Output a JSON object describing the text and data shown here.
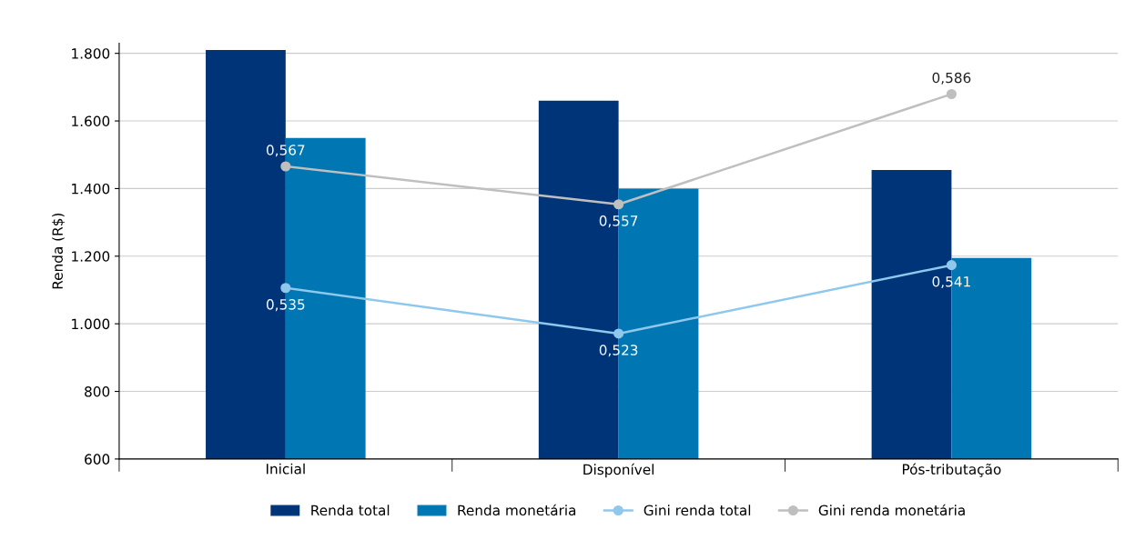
{
  "chart_data": {
    "type": "bar",
    "ylabel": "Renda (R$)",
    "categories": [
      "Inicial",
      "Disponível",
      "Pós-tributação"
    ],
    "series": [
      {
        "name": "Renda total",
        "color": "#003478",
        "values": [
          1810,
          1660,
          1455
        ]
      },
      {
        "name": "Renda monetária",
        "color": "#0077b3",
        "values": [
          1550,
          1400,
          1195
        ]
      },
      {
        "name": "Gini renda total",
        "type": "line",
        "axis": "y2",
        "color": "#8ec8ec",
        "marker": "circle",
        "values": [
          0.535,
          0.523,
          0.541
        ],
        "value_labels": [
          "0,535",
          "0,523",
          "0,541"
        ]
      },
      {
        "name": "Gini renda monetária",
        "type": "line",
        "axis": "y2",
        "color": "#bfbfbf",
        "marker": "circle",
        "values": [
          0.567,
          0.557,
          0.586
        ],
        "value_labels": [
          "0,567",
          "0,557",
          "0,586"
        ]
      }
    ],
    "ylim": [
      600,
      1830
    ],
    "yticks": [
      600,
      800,
      {
        "value": 1000,
        "label": "1.000"
      },
      {
        "value": 1200,
        "label": "1.200"
      },
      {
        "value": 1400,
        "label": "1.400"
      },
      {
        "value": 1600,
        "label": "1.600"
      },
      {
        "value": 1800,
        "label": "1.800"
      }
    ],
    "y2lim": [
      0.49,
      0.5994
    ],
    "grid": "y",
    "legend": "bottom"
  }
}
